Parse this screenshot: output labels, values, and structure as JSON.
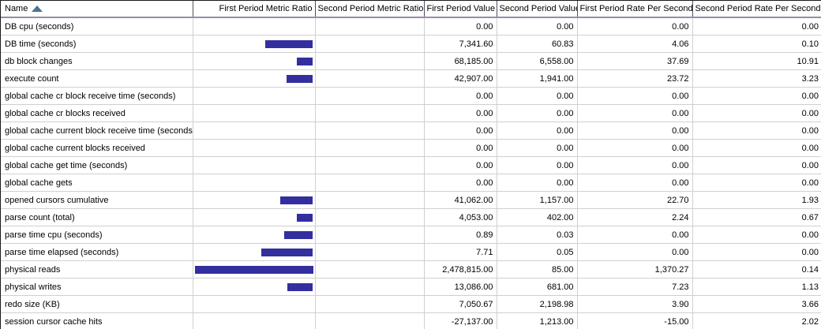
{
  "table": {
    "columns": [
      {
        "label": "Name",
        "sorted": "ascending"
      },
      {
        "label": "First Period Metric Ratio"
      },
      {
        "label": "Second Period Metric Ratio"
      },
      {
        "label": "First Period Value"
      },
      {
        "label": "Second Period Value"
      },
      {
        "label": "First Period Rate Per Second"
      },
      {
        "label": "Second Period Rate Per Second"
      }
    ],
    "rows": [
      {
        "name": "DB cpu (seconds)",
        "first_ratio_bar_pct": 0,
        "second_ratio_bar_pct": 0,
        "first_value": "0.00",
        "second_value": "0.00",
        "first_rate": "0.00",
        "second_rate": "0.00"
      },
      {
        "name": "DB time (seconds)",
        "first_ratio_bar_pct": 40,
        "second_ratio_bar_pct": 0,
        "first_value": "7,341.60",
        "second_value": "60.83",
        "first_rate": "4.06",
        "second_rate": "0.10"
      },
      {
        "name": "db block changes",
        "first_ratio_bar_pct": 13,
        "second_ratio_bar_pct": 0,
        "first_value": "68,185.00",
        "second_value": "6,558.00",
        "first_rate": "37.69",
        "second_rate": "10.91"
      },
      {
        "name": "execute count",
        "first_ratio_bar_pct": 22,
        "second_ratio_bar_pct": 0,
        "first_value": "42,907.00",
        "second_value": "1,941.00",
        "first_rate": "23.72",
        "second_rate": "3.23"
      },
      {
        "name": "global cache cr block receive time (seconds)",
        "first_ratio_bar_pct": 0,
        "second_ratio_bar_pct": 0,
        "first_value": "0.00",
        "second_value": "0.00",
        "first_rate": "0.00",
        "second_rate": "0.00"
      },
      {
        "name": "global cache cr blocks received",
        "first_ratio_bar_pct": 0,
        "second_ratio_bar_pct": 0,
        "first_value": "0.00",
        "second_value": "0.00",
        "first_rate": "0.00",
        "second_rate": "0.00"
      },
      {
        "name": "global cache current block receive time (seconds)",
        "first_ratio_bar_pct": 0,
        "second_ratio_bar_pct": 0,
        "first_value": "0.00",
        "second_value": "0.00",
        "first_rate": "0.00",
        "second_rate": "0.00"
      },
      {
        "name": "global cache current blocks received",
        "first_ratio_bar_pct": 0,
        "second_ratio_bar_pct": 0,
        "first_value": "0.00",
        "second_value": "0.00",
        "first_rate": "0.00",
        "second_rate": "0.00"
      },
      {
        "name": "global cache get time (seconds)",
        "first_ratio_bar_pct": 0,
        "second_ratio_bar_pct": 0,
        "first_value": "0.00",
        "second_value": "0.00",
        "first_rate": "0.00",
        "second_rate": "0.00"
      },
      {
        "name": "global cache gets",
        "first_ratio_bar_pct": 0,
        "second_ratio_bar_pct": 0,
        "first_value": "0.00",
        "second_value": "0.00",
        "first_rate": "0.00",
        "second_rate": "0.00"
      },
      {
        "name": "opened cursors cumulative",
        "first_ratio_bar_pct": 27,
        "second_ratio_bar_pct": 0,
        "first_value": "41,062.00",
        "second_value": "1,157.00",
        "first_rate": "22.70",
        "second_rate": "1.93"
      },
      {
        "name": "parse count (total)",
        "first_ratio_bar_pct": 13,
        "second_ratio_bar_pct": 0,
        "first_value": "4,053.00",
        "second_value": "402.00",
        "first_rate": "2.24",
        "second_rate": "0.67"
      },
      {
        "name": "parse time cpu (seconds)",
        "first_ratio_bar_pct": 24,
        "second_ratio_bar_pct": 0,
        "first_value": "0.89",
        "second_value": "0.03",
        "first_rate": "0.00",
        "second_rate": "0.00"
      },
      {
        "name": "parse time elapsed (seconds)",
        "first_ratio_bar_pct": 43,
        "second_ratio_bar_pct": 0,
        "first_value": "7.71",
        "second_value": "0.05",
        "first_rate": "0.00",
        "second_rate": "0.00"
      },
      {
        "name": "physical reads",
        "first_ratio_bar_pct": 100,
        "second_ratio_bar_pct": 0,
        "first_value": "2,478,815.00",
        "second_value": "85.00",
        "first_rate": "1,370.27",
        "second_rate": "0.14"
      },
      {
        "name": "physical writes",
        "first_ratio_bar_pct": 21,
        "second_ratio_bar_pct": 0,
        "first_value": "13,086.00",
        "second_value": "681.00",
        "first_rate": "7.23",
        "second_rate": "1.13"
      },
      {
        "name": "redo size (KB)",
        "first_ratio_bar_pct": 0,
        "second_ratio_bar_pct": 0,
        "first_value": "7,050.67",
        "second_value": "2,198.98",
        "first_rate": "3.90",
        "second_rate": "3.66"
      },
      {
        "name": "session cursor cache hits",
        "first_ratio_bar_pct": 0,
        "second_ratio_bar_pct": 0,
        "first_value": "-27,137.00",
        "second_value": "1,213.00",
        "first_rate": "-15.00",
        "second_rate": "2.02"
      }
    ]
  },
  "colors": {
    "ratio_bar": "#332f9e",
    "sort_icon": "#4e7392",
    "header_separator": "#584a60",
    "header_underline": "#988ca2",
    "grid_line": "#cdd2cd",
    "outer_border": "#1a1a1a"
  }
}
